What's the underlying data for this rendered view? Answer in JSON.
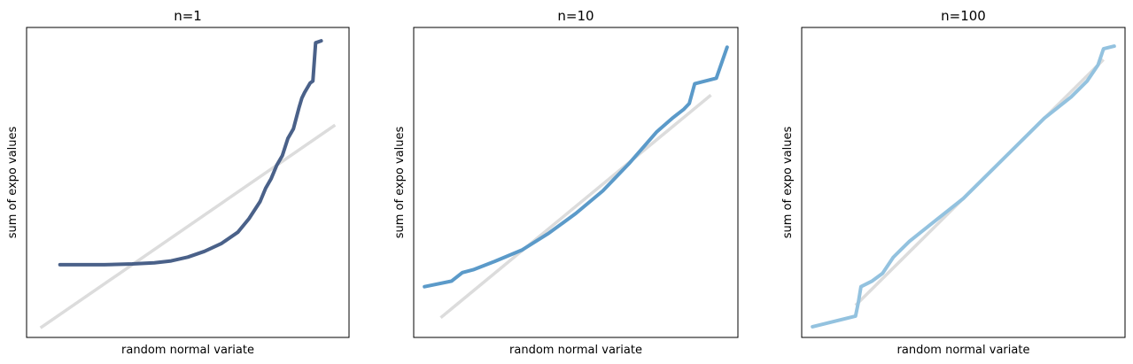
{
  "chart_data": [
    {
      "type": "line",
      "title": "n=1",
      "xlabel": "random normal variate",
      "ylabel": "sum of expo values",
      "xlim": [
        -2.9,
        2.9
      ],
      "ylim": [
        -2.9,
        5.2
      ],
      "xticks": "none",
      "yticks": "none",
      "grid": false,
      "colors": {
        "data": "#4a6189",
        "reference": "#dcdcdc"
      },
      "series": [
        {
          "role": "reference",
          "x": [
            -2.65,
            2.65
          ],
          "y": [
            -2.65,
            2.65
          ]
        },
        {
          "role": "data",
          "x": [
            -2.3,
            -1.5,
            -1.0,
            -0.6,
            -0.3,
            0.0,
            0.3,
            0.6,
            0.9,
            1.1,
            1.3,
            1.4,
            1.5,
            1.6,
            1.7,
            1.8,
            1.9,
            2.0,
            2.05,
            2.1,
            2.2,
            2.25,
            2.3,
            2.4
          ],
          "y": [
            -1.0,
            -1.0,
            -0.98,
            -0.95,
            -0.9,
            -0.8,
            -0.65,
            -0.45,
            -0.15,
            0.2,
            0.65,
            1.0,
            1.25,
            1.6,
            1.85,
            2.3,
            2.55,
            3.1,
            3.35,
            3.5,
            3.75,
            3.8,
            4.8,
            4.85
          ]
        }
      ]
    },
    {
      "type": "line",
      "title": "n=10",
      "xlabel": "random normal variate",
      "ylabel": "sum of expo values",
      "xlim": [
        -3.0,
        3.0
      ],
      "ylim": [
        -2.3,
        3.2
      ],
      "xticks": "none",
      "yticks": "none",
      "grid": false,
      "colors": {
        "data": "#5b9ac9",
        "reference": "#dcdcdc"
      },
      "series": [
        {
          "role": "reference",
          "x": [
            -2.5,
            2.5
          ],
          "y": [
            -1.95,
            2.0
          ]
        },
        {
          "role": "data",
          "x": [
            -2.8,
            -2.3,
            -2.1,
            -1.9,
            -1.5,
            -1.0,
            -0.5,
            0.0,
            0.5,
            1.0,
            1.5,
            1.8,
            2.0,
            2.1,
            2.2,
            2.6,
            2.8
          ],
          "y": [
            -1.4,
            -1.3,
            -1.15,
            -1.1,
            -0.95,
            -0.75,
            -0.45,
            -0.1,
            0.3,
            0.8,
            1.35,
            1.6,
            1.75,
            1.85,
            2.2,
            2.3,
            2.85
          ]
        }
      ]
    },
    {
      "type": "line",
      "title": "n=100",
      "xlabel": "random normal variate",
      "ylabel": "sum of expo values",
      "xlim": [
        -3.0,
        3.0
      ],
      "ylim": [
        -2.6,
        3.2
      ],
      "xticks": "none",
      "yticks": "none",
      "grid": false,
      "colors": {
        "data": "#93c2df",
        "reference": "#dcdcdc"
      },
      "series": [
        {
          "role": "reference",
          "x": [
            -2.0,
            2.6
          ],
          "y": [
            -2.0,
            2.6
          ]
        },
        {
          "role": "data",
          "x": [
            -2.8,
            -2.0,
            -1.95,
            -1.9,
            -1.7,
            -1.5,
            -1.3,
            -1.0,
            -0.5,
            0.0,
            0.5,
            1.0,
            1.5,
            2.0,
            2.3,
            2.5,
            2.6,
            2.8
          ],
          "y": [
            -2.4,
            -2.2,
            -1.95,
            -1.65,
            -1.55,
            -1.4,
            -1.1,
            -0.8,
            -0.4,
            0.0,
            0.5,
            1.0,
            1.5,
            1.9,
            2.2,
            2.5,
            2.8,
            2.85
          ]
        }
      ]
    }
  ]
}
